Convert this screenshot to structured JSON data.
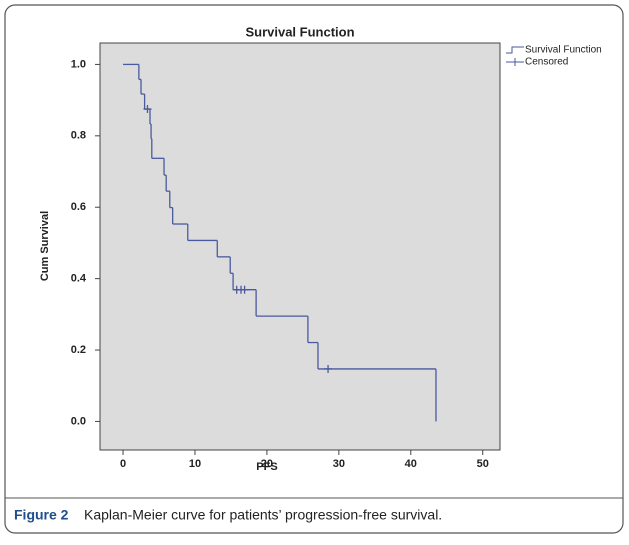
{
  "chart_data": {
    "type": "step",
    "title": "Survival Function",
    "x_label": "PFS",
    "y_label": "Cum Survival",
    "xlim": [
      -3.2,
      52.4
    ],
    "ylim": [
      -0.08,
      1.06
    ],
    "xticks": [
      0,
      10,
      20,
      30,
      40,
      50
    ],
    "yticks": [
      {
        "value": 0,
        "label": "0.0"
      },
      {
        "value": 0.2,
        "label": "0.2"
      },
      {
        "value": 0.4,
        "label": "0.4"
      },
      {
        "value": 0.6,
        "label": "0.6"
      },
      {
        "value": 0.8,
        "label": "0.8"
      },
      {
        "value": 1,
        "label": "1.0"
      }
    ],
    "legend_position": "outside-top-right",
    "background": "#dcdcdc",
    "series": [
      {
        "name": "Survival Function",
        "color": "#4a5a9e",
        "x": [
          0,
          2.2,
          2.5,
          3.0,
          3.75,
          3.9,
          4.0,
          5.7,
          6.0,
          6.5,
          6.9,
          9.0,
          13.1,
          14.9,
          15.3,
          18.5,
          25.7,
          27.1,
          43.5
        ],
        "values": [
          1.0,
          0.958,
          0.917,
          0.875,
          0.833,
          0.792,
          0.737,
          0.69,
          0.645,
          0.599,
          0.553,
          0.507,
          0.461,
          0.415,
          0.369,
          0.295,
          0.221,
          0.147,
          0.0
        ]
      },
      {
        "name": "Censored",
        "color": "#4a5a9e",
        "x": [
          3.4,
          15.8,
          16.4,
          16.9,
          28.5
        ],
        "values": [
          0.875,
          0.369,
          0.369,
          0.369,
          0.147
        ]
      }
    ]
  },
  "caption": {
    "label": "Figure 2",
    "text": "Kaplan-Meier curve for patients’ progression-free survival."
  }
}
